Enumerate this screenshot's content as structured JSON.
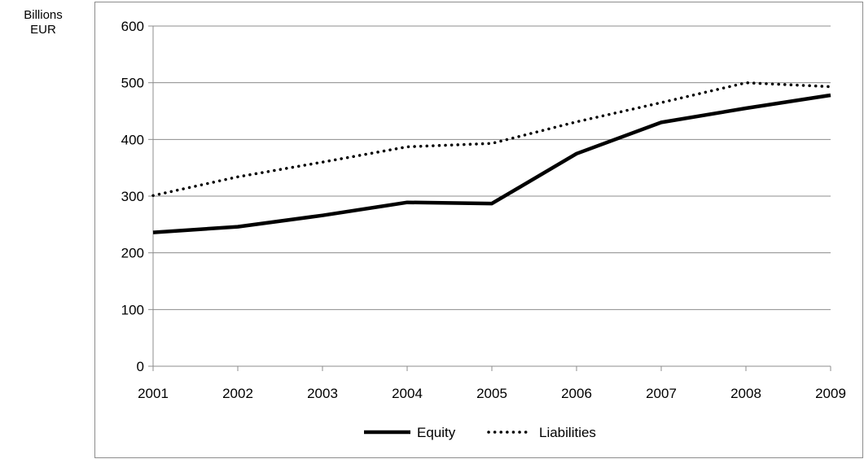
{
  "chart_data": {
    "type": "line",
    "title": "",
    "xlabel": "",
    "ylabel": "Billions EUR",
    "ylabel_lines": [
      "Billions",
      "EUR"
    ],
    "x": [
      "2001",
      "2002",
      "2003",
      "2004",
      "2005",
      "2006",
      "2007",
      "2008",
      "2009"
    ],
    "ylim": [
      0,
      600
    ],
    "yticks": [
      0,
      100,
      200,
      300,
      400,
      500,
      600
    ],
    "grid": true,
    "legend_position": "bottom",
    "series": [
      {
        "name": "Equity",
        "style": "solid",
        "color": "#000000",
        "values": [
          236,
          246,
          266,
          289,
          287,
          375,
          430,
          455,
          478
        ]
      },
      {
        "name": "Liabilities",
        "style": "dotted",
        "color": "#000000",
        "values": [
          301,
          334,
          360,
          387,
          393,
          431,
          465,
          500,
          493
        ]
      }
    ]
  }
}
